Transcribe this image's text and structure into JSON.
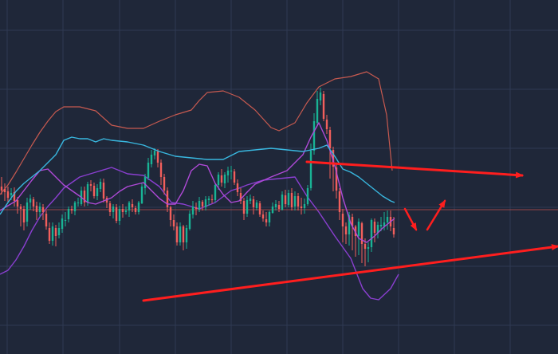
{
  "chart_data": {
    "type": "candlestick",
    "title": "",
    "xlabel": "",
    "ylabel": "",
    "ylim": [
      0,
      444
    ],
    "grid": true,
    "legend": "none",
    "colors": {
      "background": "#1f2739",
      "grid": "#2f3a52",
      "up": "#19b395",
      "down": "#f25f5c",
      "upper_band": "#c85a50",
      "lower_band": "#8a3fd0",
      "ma_purple": "#b04ad8",
      "ma_cyan": "#39b8e0",
      "ref_line": "#c0504d",
      "annotation": "#ff1e1e"
    },
    "candles": [
      [
        210,
        205,
        222,
        200
      ],
      [
        207,
        203,
        214,
        192
      ],
      [
        204,
        196,
        210,
        191
      ],
      [
        199,
        202,
        208,
        193
      ],
      [
        203,
        192,
        209,
        185
      ],
      [
        193,
        185,
        197,
        176
      ],
      [
        185,
        182,
        188,
        160
      ],
      [
        182,
        165,
        186,
        155
      ],
      [
        166,
        190,
        196,
        160
      ],
      [
        190,
        195,
        200,
        181
      ],
      [
        194,
        185,
        197,
        179
      ],
      [
        186,
        178,
        191,
        168
      ],
      [
        178,
        185,
        190,
        172
      ],
      [
        184,
        178,
        188,
        168
      ],
      [
        176,
        160,
        180,
        156
      ],
      [
        158,
        142,
        165,
        138
      ],
      [
        142,
        160,
        165,
        136
      ],
      [
        158,
        148,
        162,
        135
      ],
      [
        149,
        158,
        165,
        145
      ],
      [
        157,
        170,
        175,
        152
      ],
      [
        168,
        168,
        178,
        160
      ],
      [
        169,
        182,
        185,
        165
      ],
      [
        182,
        180,
        186,
        176
      ],
      [
        179,
        190,
        192,
        174
      ],
      [
        190,
        190,
        196,
        185
      ],
      [
        188,
        205,
        210,
        186
      ],
      [
        205,
        190,
        210,
        185
      ],
      [
        190,
        213,
        216,
        186
      ],
      [
        213,
        211,
        218,
        204
      ],
      [
        211,
        198,
        215,
        195
      ],
      [
        198,
        208,
        213,
        193
      ],
      [
        207,
        216,
        220,
        203
      ],
      [
        215,
        195,
        220,
        190
      ],
      [
        196,
        190,
        198,
        183
      ],
      [
        189,
        178,
        192,
        173
      ],
      [
        178,
        185,
        188,
        170
      ],
      [
        184,
        167,
        188,
        164
      ],
      [
        167,
        182,
        186,
        162
      ],
      [
        182,
        178,
        188,
        171
      ],
      [
        178,
        180,
        185,
        175
      ],
      [
        180,
        190,
        192,
        172
      ],
      [
        188,
        184,
        194,
        178
      ],
      [
        183,
        178,
        186,
        175
      ],
      [
        178,
        190,
        192,
        175
      ],
      [
        189,
        210,
        214,
        188
      ],
      [
        208,
        222,
        226,
        200
      ],
      [
        221,
        240,
        246,
        218
      ],
      [
        238,
        250,
        256,
        234
      ],
      [
        249,
        255,
        258,
        244
      ],
      [
        254,
        240,
        257,
        234
      ],
      [
        240,
        222,
        244,
        212
      ],
      [
        222,
        205,
        226,
        200
      ],
      [
        205,
        184,
        209,
        178
      ],
      [
        184,
        168,
        186,
        160
      ],
      [
        168,
        160,
        175,
        155
      ],
      [
        160,
        140,
        165,
        136
      ],
      [
        140,
        160,
        165,
        136
      ],
      [
        160,
        140,
        162,
        130
      ],
      [
        140,
        158,
        162,
        132
      ],
      [
        157,
        176,
        180,
        155
      ],
      [
        175,
        185,
        192,
        170
      ],
      [
        184,
        182,
        190,
        174
      ],
      [
        181,
        192,
        197,
        178
      ],
      [
        191,
        185,
        193,
        180
      ],
      [
        184,
        194,
        198,
        180
      ],
      [
        193,
        195,
        198,
        186
      ],
      [
        194,
        193,
        200,
        189
      ],
      [
        193,
        212,
        214,
        190
      ],
      [
        212,
        225,
        228,
        206
      ],
      [
        224,
        215,
        232,
        210
      ],
      [
        214,
        225,
        228,
        208
      ],
      [
        224,
        230,
        235,
        215
      ],
      [
        229,
        230,
        236,
        219
      ],
      [
        229,
        215,
        232,
        212
      ],
      [
        214,
        203,
        219,
        198
      ],
      [
        202,
        192,
        208,
        188
      ],
      [
        192,
        176,
        196,
        168
      ],
      [
        176,
        193,
        198,
        172
      ],
      [
        192,
        195,
        200,
        188
      ],
      [
        194,
        184,
        198,
        175
      ],
      [
        183,
        190,
        193,
        180
      ],
      [
        189,
        175,
        192,
        172
      ],
      [
        175,
        170,
        180,
        166
      ],
      [
        169,
        165,
        178,
        160
      ],
      [
        165,
        178,
        180,
        160
      ],
      [
        177,
        185,
        190,
        176
      ],
      [
        184,
        188,
        193,
        180
      ],
      [
        187,
        182,
        192,
        178
      ],
      [
        181,
        200,
        204,
        180
      ],
      [
        199,
        188,
        206,
        184
      ],
      [
        187,
        202,
        206,
        184
      ],
      [
        202,
        184,
        208,
        180
      ],
      [
        185,
        198,
        204,
        180
      ],
      [
        198,
        185,
        202,
        180
      ],
      [
        185,
        183,
        196,
        175
      ],
      [
        183,
        188,
        195,
        176
      ],
      [
        188,
        208,
        212,
        186
      ],
      [
        208,
        255,
        264,
        205
      ],
      [
        255,
        292,
        302,
        250
      ],
      [
        290,
        320,
        330,
        286
      ],
      [
        318,
        328,
        334,
        312
      ],
      [
        326,
        295,
        330,
        292
      ],
      [
        294,
        282,
        300,
        276
      ],
      [
        281,
        258,
        285,
        220
      ],
      [
        256,
        235,
        260,
        204
      ],
      [
        234,
        205,
        240,
        195
      ],
      [
        204,
        178,
        208,
        168
      ],
      [
        176,
        160,
        182,
        140
      ],
      [
        160,
        150,
        165,
        138
      ],
      [
        150,
        174,
        178,
        136
      ],
      [
        172,
        160,
        176,
        130
      ],
      [
        160,
        148,
        162,
        122
      ],
      [
        148,
        166,
        170,
        124
      ],
      [
        164,
        138,
        166,
        114
      ],
      [
        138,
        132,
        145,
        110
      ],
      [
        132,
        134,
        140,
        115
      ],
      [
        134,
        168,
        170,
        128
      ],
      [
        166,
        152,
        170,
        140
      ],
      [
        152,
        162,
        166,
        145
      ],
      [
        160,
        162,
        172,
        154
      ],
      [
        160,
        165,
        178,
        155
      ],
      [
        165,
        172,
        180,
        156
      ],
      [
        172,
        160,
        180,
        154
      ],
      [
        158,
        150,
        172,
        146
      ]
    ],
    "upper_band": [
      [
        0,
        200
      ],
      [
        10,
        212
      ],
      [
        20,
        228
      ],
      [
        30,
        245
      ],
      [
        40,
        262
      ],
      [
        50,
        278
      ],
      [
        60,
        292
      ],
      [
        70,
        304
      ],
      [
        80,
        310
      ],
      [
        100,
        310
      ],
      [
        120,
        305
      ],
      [
        140,
        287
      ],
      [
        160,
        283
      ],
      [
        180,
        283
      ],
      [
        200,
        292
      ],
      [
        220,
        300
      ],
      [
        240,
        306
      ],
      [
        250,
        318
      ],
      [
        260,
        328
      ],
      [
        280,
        330
      ],
      [
        300,
        322
      ],
      [
        320,
        306
      ],
      [
        340,
        284
      ],
      [
        350,
        280
      ],
      [
        370,
        290
      ],
      [
        385,
        315
      ],
      [
        400,
        335
      ],
      [
        420,
        345
      ],
      [
        440,
        348
      ],
      [
        460,
        354
      ],
      [
        475,
        345
      ],
      [
        485,
        300
      ],
      [
        492,
        230
      ]
    ],
    "lower_band": [
      [
        0,
        100
      ],
      [
        10,
        105
      ],
      [
        20,
        118
      ],
      [
        30,
        135
      ],
      [
        40,
        155
      ],
      [
        50,
        172
      ],
      [
        60,
        185
      ],
      [
        70,
        196
      ],
      [
        80,
        208
      ],
      [
        100,
        222
      ],
      [
        120,
        228
      ],
      [
        140,
        234
      ],
      [
        150,
        230
      ],
      [
        160,
        226
      ],
      [
        180,
        224
      ],
      [
        200,
        210
      ],
      [
        215,
        190
      ],
      [
        230,
        188
      ],
      [
        250,
        182
      ],
      [
        270,
        190
      ],
      [
        290,
        205
      ],
      [
        300,
        208
      ],
      [
        310,
        212
      ],
      [
        330,
        218
      ],
      [
        350,
        220
      ],
      [
        370,
        222
      ],
      [
        385,
        198
      ],
      [
        400,
        178
      ],
      [
        420,
        148
      ],
      [
        440,
        120
      ],
      [
        455,
        82
      ],
      [
        465,
        70
      ],
      [
        475,
        68
      ],
      [
        490,
        82
      ],
      [
        500,
        100
      ]
    ],
    "ma_purple": [
      [
        0,
        180
      ],
      [
        10,
        186
      ],
      [
        20,
        192
      ],
      [
        30,
        205
      ],
      [
        40,
        218
      ],
      [
        50,
        230
      ],
      [
        60,
        232
      ],
      [
        70,
        222
      ],
      [
        80,
        212
      ],
      [
        90,
        205
      ],
      [
        100,
        198
      ],
      [
        110,
        190
      ],
      [
        120,
        188
      ],
      [
        140,
        196
      ],
      [
        150,
        204
      ],
      [
        160,
        210
      ],
      [
        180,
        215
      ],
      [
        190,
        205
      ],
      [
        200,
        195
      ],
      [
        210,
        188
      ],
      [
        220,
        188
      ],
      [
        230,
        205
      ],
      [
        240,
        230
      ],
      [
        250,
        238
      ],
      [
        260,
        236
      ],
      [
        270,
        214
      ],
      [
        280,
        200
      ],
      [
        290,
        190
      ],
      [
        300,
        192
      ],
      [
        310,
        203
      ],
      [
        320,
        213
      ],
      [
        340,
        222
      ],
      [
        360,
        230
      ],
      [
        380,
        250
      ],
      [
        390,
        272
      ],
      [
        400,
        290
      ],
      [
        410,
        268
      ],
      [
        420,
        236
      ],
      [
        430,
        196
      ],
      [
        440,
        164
      ],
      [
        450,
        145
      ],
      [
        460,
        140
      ],
      [
        470,
        148
      ],
      [
        480,
        158
      ],
      [
        490,
        166
      ],
      [
        495,
        170
      ]
    ],
    "ma_cyan": [
      [
        0,
        175
      ],
      [
        10,
        190
      ],
      [
        20,
        204
      ],
      [
        30,
        214
      ],
      [
        40,
        222
      ],
      [
        50,
        230
      ],
      [
        60,
        240
      ],
      [
        70,
        250
      ],
      [
        80,
        268
      ],
      [
        90,
        272
      ],
      [
        100,
        270
      ],
      [
        110,
        270
      ],
      [
        120,
        266
      ],
      [
        130,
        270
      ],
      [
        140,
        268
      ],
      [
        160,
        266
      ],
      [
        180,
        262
      ],
      [
        200,
        254
      ],
      [
        220,
        248
      ],
      [
        240,
        246
      ],
      [
        260,
        244
      ],
      [
        280,
        244
      ],
      [
        300,
        254
      ],
      [
        320,
        256
      ],
      [
        340,
        258
      ],
      [
        360,
        256
      ],
      [
        380,
        254
      ],
      [
        400,
        258
      ],
      [
        410,
        262
      ],
      [
        420,
        248
      ],
      [
        430,
        232
      ],
      [
        440,
        228
      ],
      [
        450,
        222
      ],
      [
        460,
        214
      ],
      [
        470,
        206
      ],
      [
        480,
        198
      ],
      [
        490,
        192
      ],
      [
        495,
        190
      ]
    ],
    "ref_line": [
      [
        0,
        181
      ],
      [
        700,
        181
      ]
    ],
    "annotations": [
      {
        "type": "arrow",
        "from": [
          385,
          241
        ],
        "to": [
          655,
          224
        ]
      },
      {
        "type": "arrow",
        "from": [
          180,
          67
        ],
        "to": [
          700,
          135
        ]
      },
      {
        "type": "arrow",
        "from": [
          508,
          182
        ],
        "to": [
          522,
          156
        ]
      },
      {
        "type": "arrow",
        "from": [
          536,
          156
        ],
        "to": [
          558,
          192
        ]
      }
    ]
  }
}
